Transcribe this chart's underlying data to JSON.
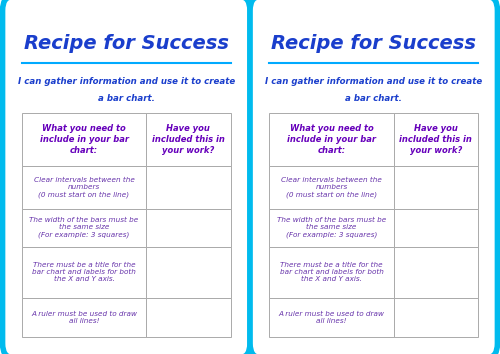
{
  "title": "Recipe for Success",
  "subtitle_line1": "I can gather information and use it to create",
  "subtitle_line2": "a bar chart.",
  "col1_header": "What you need to\ninclude in your bar\nchart:",
  "col2_header": "Have you\nincluded this in\nyour work?",
  "rows": [
    "Clear intervals between the\nnumbers\n(0 must start on the line)",
    "The width of the bars must be\nthe same size\n(For example: 3 squares)",
    "There must be a title for the\nbar chart and labels for both\nthe X and Y axis.",
    "A ruler must be used to draw\nall lines!"
  ],
  "title_color": "#1a3ecc",
  "title_underline_color": "#00aaff",
  "subtitle_color": "#1a3ecc",
  "header_text_color": "#6600bb",
  "row_text_color": "#6633aa",
  "border_color": "#00bbee",
  "table_border_color": "#aaaaaa",
  "bg_color": "#ffffff",
  "card_bg": "#ffffff",
  "fig_bg": "#ffffff"
}
